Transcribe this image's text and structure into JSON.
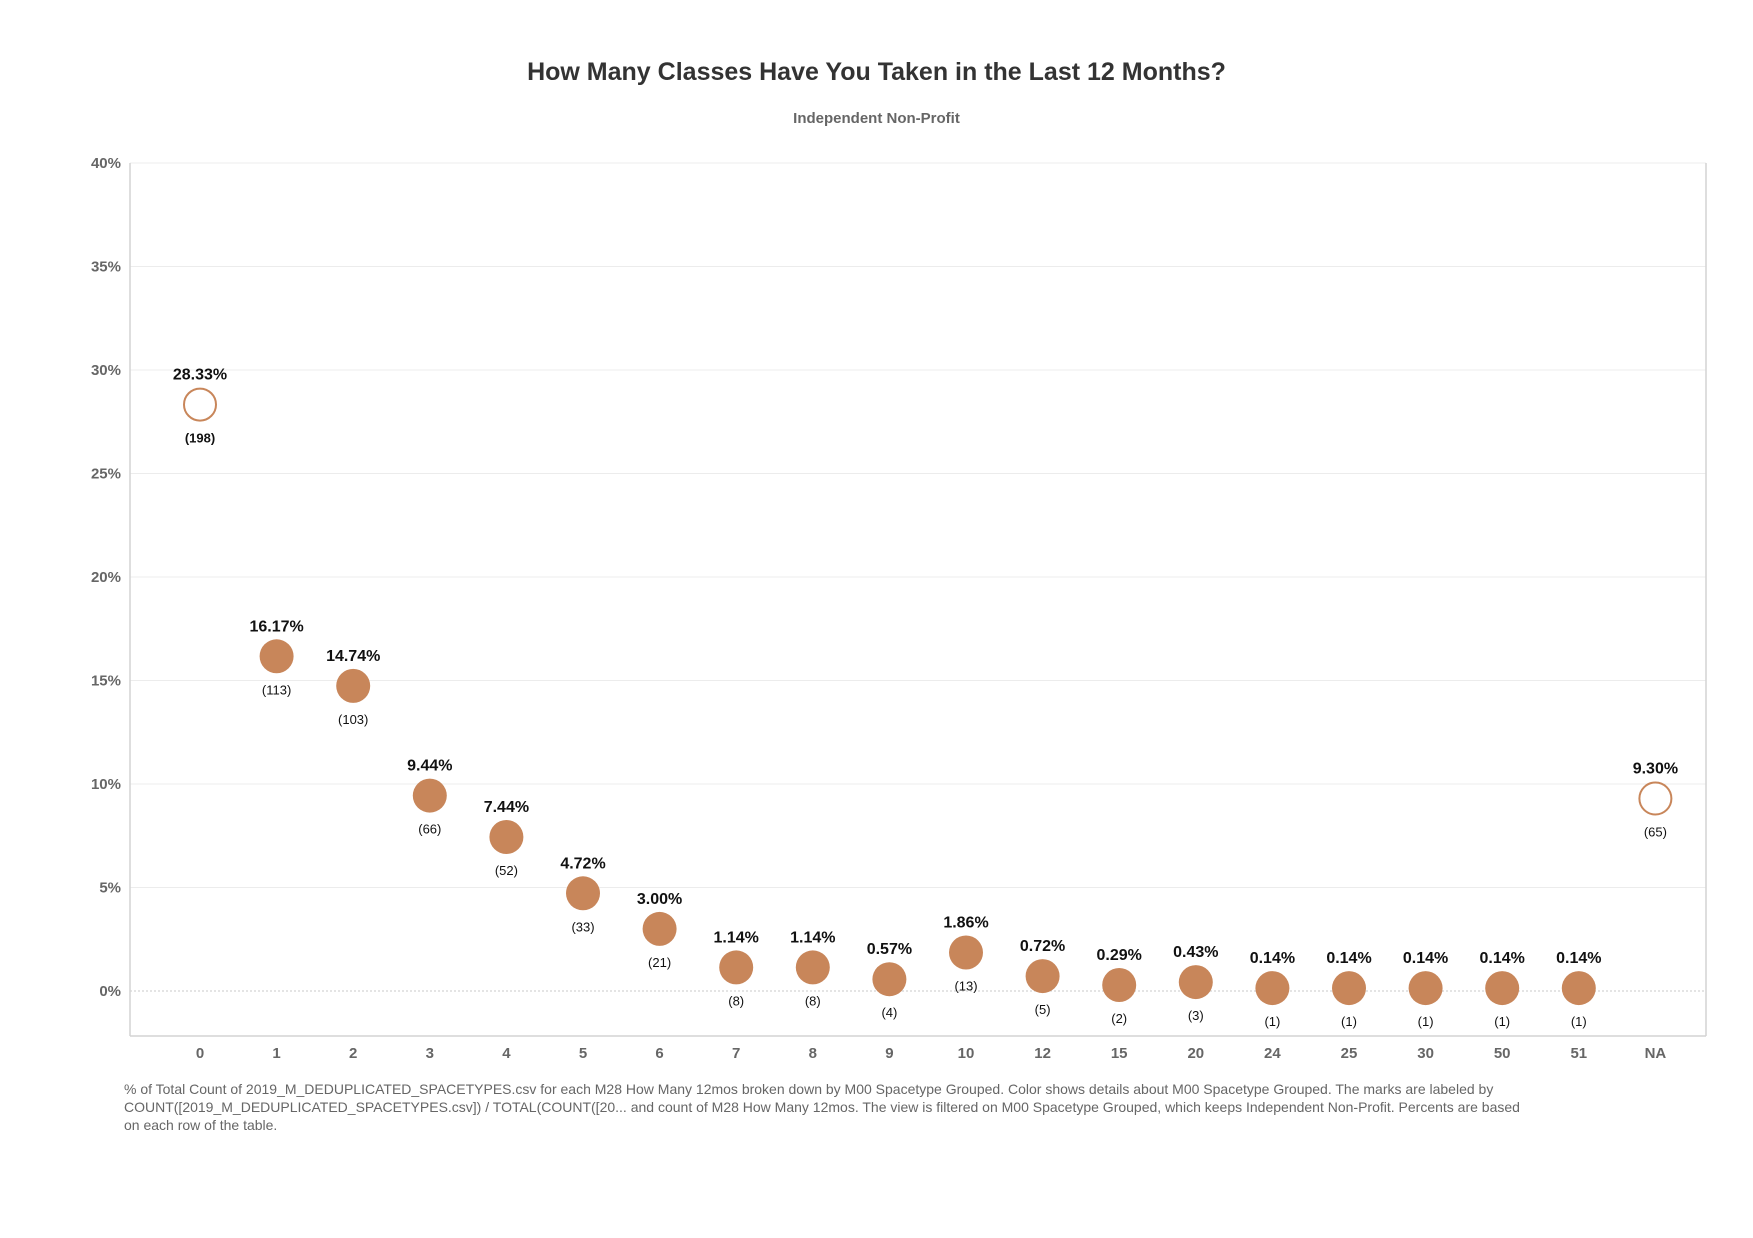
{
  "chart_data": {
    "type": "scatter",
    "title": "How Many Classes Have You Taken in the Last 12 Months?",
    "subtitle": "Independent Non-Profit",
    "ylim": [
      -2,
      40
    ],
    "y_ticks": [
      "40%",
      "35%",
      "30%",
      "25%",
      "20%",
      "15%",
      "10%",
      "5%",
      "0%"
    ],
    "y_tick_values": [
      40,
      35,
      30,
      25,
      20,
      15,
      10,
      5,
      0
    ],
    "grid": true,
    "categories": [
      "0",
      "1",
      "2",
      "3",
      "4",
      "5",
      "6",
      "7",
      "8",
      "9",
      "10",
      "12",
      "15",
      "20",
      "24",
      "25",
      "30",
      "50",
      "51",
      "NA"
    ],
    "values": [
      28.33,
      16.17,
      14.74,
      9.44,
      7.44,
      4.72,
      3.0,
      1.14,
      1.14,
      0.57,
      1.86,
      0.72,
      0.29,
      0.43,
      0.14,
      0.14,
      0.14,
      0.14,
      0.14,
      9.3
    ],
    "value_labels": [
      "28.33%",
      "16.17%",
      "14.74%",
      "9.44%",
      "7.44%",
      "4.72%",
      "3.00%",
      "1.14%",
      "1.14%",
      "0.57%",
      "1.86%",
      "0.72%",
      "0.29%",
      "0.43%",
      "0.14%",
      "0.14%",
      "0.14%",
      "0.14%",
      "0.14%",
      "9.30%"
    ],
    "counts": [
      "(198)",
      "(113)",
      "(103)",
      "(66)",
      "(52)",
      "(33)",
      "(21)",
      "(8)",
      "(8)",
      "(4)",
      "(13)",
      "(5)",
      "(2)",
      "(3)",
      "(1)",
      "(1)",
      "(1)",
      "(1)",
      "(1)",
      "(65)"
    ],
    "hollow": [
      true,
      false,
      false,
      false,
      false,
      false,
      false,
      false,
      false,
      false,
      false,
      false,
      false,
      false,
      false,
      false,
      false,
      false,
      false,
      true
    ],
    "colors": {
      "mark": "#c8865a",
      "grid": "#ececec",
      "zero_line": "#c8c8c8",
      "axis": "#d4d4d4"
    }
  },
  "caption": "% of Total Count of 2019_M_DEDUPLICATED_SPACETYPES.csv for each M28 How Many 12mos broken down by M00 Spacetype Grouped.  Color shows details about M00 Spacetype Grouped.  The marks are labeled by COUNT([2019_M_DEDUPLICATED_SPACETYPES.csv]) / TOTAL(COUNT([20... and count of M28 How Many 12mos. The view is filtered on M00 Spacetype Grouped, which keeps Independent Non-Profit. Percents are based on each row of the table."
}
